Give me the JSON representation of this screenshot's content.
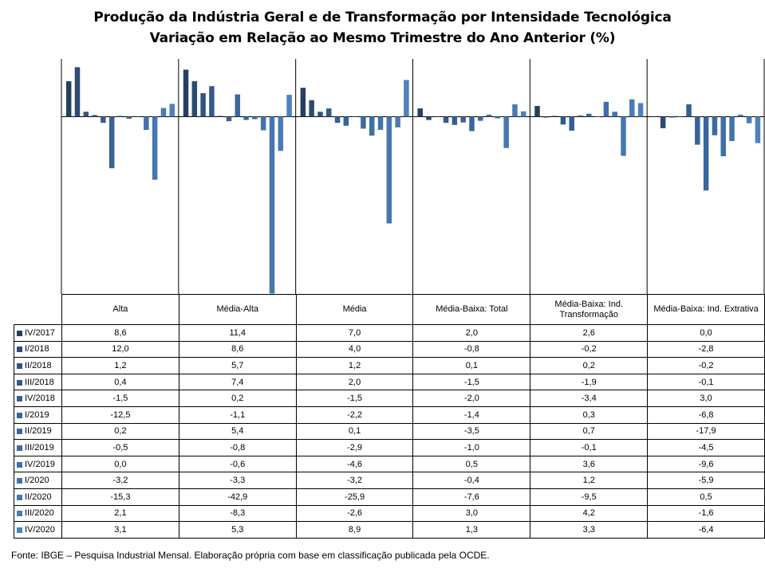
{
  "chart_data": {
    "type": "bar",
    "title": "Produção da Indústria Geral e de Transformação por Intensidade Tecnológica",
    "subtitle": "Variação em Relação ao Mesmo Trimestre do Ano Anterior (%)",
    "categories": [
      "Alta",
      "Média-Alta",
      "Média",
      "Média-Baixa: Total",
      "Média-Baixa: Ind. Transformação",
      "Média-Baixa: Ind. Extrativa"
    ],
    "series": [
      {
        "name": "IV/2017",
        "labels": [
          "8,6",
          "11,4",
          "7,0",
          "2,0",
          "2,6",
          "0,0"
        ],
        "values": [
          8.6,
          11.4,
          7.0,
          2.0,
          2.6,
          0.0
        ],
        "color": "#243f60"
      },
      {
        "name": "I/2018",
        "labels": [
          "12,0",
          "8,6",
          "4,0",
          "-0,8",
          "-0,2",
          "-2,8"
        ],
        "values": [
          12.0,
          8.6,
          4.0,
          -0.8,
          -0.2,
          -2.8
        ],
        "color": "#2b4b73"
      },
      {
        "name": "II/2018",
        "labels": [
          "1,2",
          "5,7",
          "1,2",
          "0,1",
          "0,2",
          "-0,2"
        ],
        "values": [
          1.2,
          5.7,
          1.2,
          0.1,
          0.2,
          -0.2
        ],
        "color": "#30547f"
      },
      {
        "name": "III/2018",
        "labels": [
          "0,4",
          "7,4",
          "2,0",
          "-1,5",
          "-1,9",
          "-0,1"
        ],
        "values": [
          0.4,
          7.4,
          2.0,
          -1.5,
          -1.9,
          -0.1
        ],
        "color": "#335a89"
      },
      {
        "name": "IV/2018",
        "labels": [
          "-1,5",
          "0,2",
          "-1,5",
          "-2,0",
          "-3,4",
          "3,0"
        ],
        "values": [
          -1.5,
          0.2,
          -1.5,
          -2.0,
          -3.4,
          3.0
        ],
        "color": "#365f90"
      },
      {
        "name": "I/2019",
        "labels": [
          "-12,5",
          "-1,1",
          "-2,2",
          "-1,4",
          "0,3",
          "-6,8"
        ],
        "values": [
          -12.5,
          -1.1,
          -2.2,
          -1.4,
          0.3,
          -6.8
        ],
        "color": "#386396"
      },
      {
        "name": "II/2019",
        "labels": [
          "0,2",
          "5,4",
          "0,1",
          "-3,5",
          "0,7",
          "-17,9"
        ],
        "values": [
          0.2,
          5.4,
          0.1,
          -3.5,
          0.7,
          -17.9
        ],
        "color": "#3a679b"
      },
      {
        "name": "III/2019",
        "labels": [
          "-0,5",
          "-0,8",
          "-2,9",
          "-1,0",
          "-0,1",
          "-4,5"
        ],
        "values": [
          -0.5,
          -0.8,
          -2.9,
          -1.0,
          -0.1,
          -4.5
        ],
        "color": "#3c6ba0"
      },
      {
        "name": "IV/2019",
        "labels": [
          "0,0",
          "-0,6",
          "-4,6",
          "0,5",
          "3,6",
          "-9,6"
        ],
        "values": [
          0.0,
          -0.6,
          -4.6,
          0.5,
          3.6,
          -9.6
        ],
        "color": "#3f6fa5"
      },
      {
        "name": "I/2020",
        "labels": [
          "-3,2",
          "-3,3",
          "-3,2",
          "-0,4",
          "1,2",
          "-5,9"
        ],
        "values": [
          -3.2,
          -3.3,
          -3.2,
          -0.4,
          1.2,
          -5.9
        ],
        "color": "#4273aa"
      },
      {
        "name": "II/2020",
        "labels": [
          "-15,3",
          "-42,9",
          "-25,9",
          "-7,6",
          "-9,5",
          "0,5"
        ],
        "values": [
          -15.3,
          -42.9,
          -25.9,
          -7.6,
          -9.5,
          0.5
        ],
        "color": "#4677af"
      },
      {
        "name": "III/2020",
        "labels": [
          "2,1",
          "-8,3",
          "-2,6",
          "3,0",
          "4,2",
          "-1,6"
        ],
        "values": [
          2.1,
          -8.3,
          -2.6,
          3.0,
          4.2,
          -1.6
        ],
        "color": "#4a7bb4"
      },
      {
        "name": "IV/2020",
        "labels": [
          "3,1",
          "5,3",
          "8,9",
          "1,3",
          "3,3",
          "-6,4"
        ],
        "values": [
          3.1,
          5.3,
          8.9,
          1.3,
          3.3,
          -6.4
        ],
        "color": "#4f81bd"
      }
    ],
    "ylim": [
      -43,
      14
    ],
    "grid": false,
    "legend": "data-table",
    "source": "Fonte: IBGE – Pesquisa Industrial Mensal. Elaboração própria com base em classificação publicada pela OCDE."
  }
}
